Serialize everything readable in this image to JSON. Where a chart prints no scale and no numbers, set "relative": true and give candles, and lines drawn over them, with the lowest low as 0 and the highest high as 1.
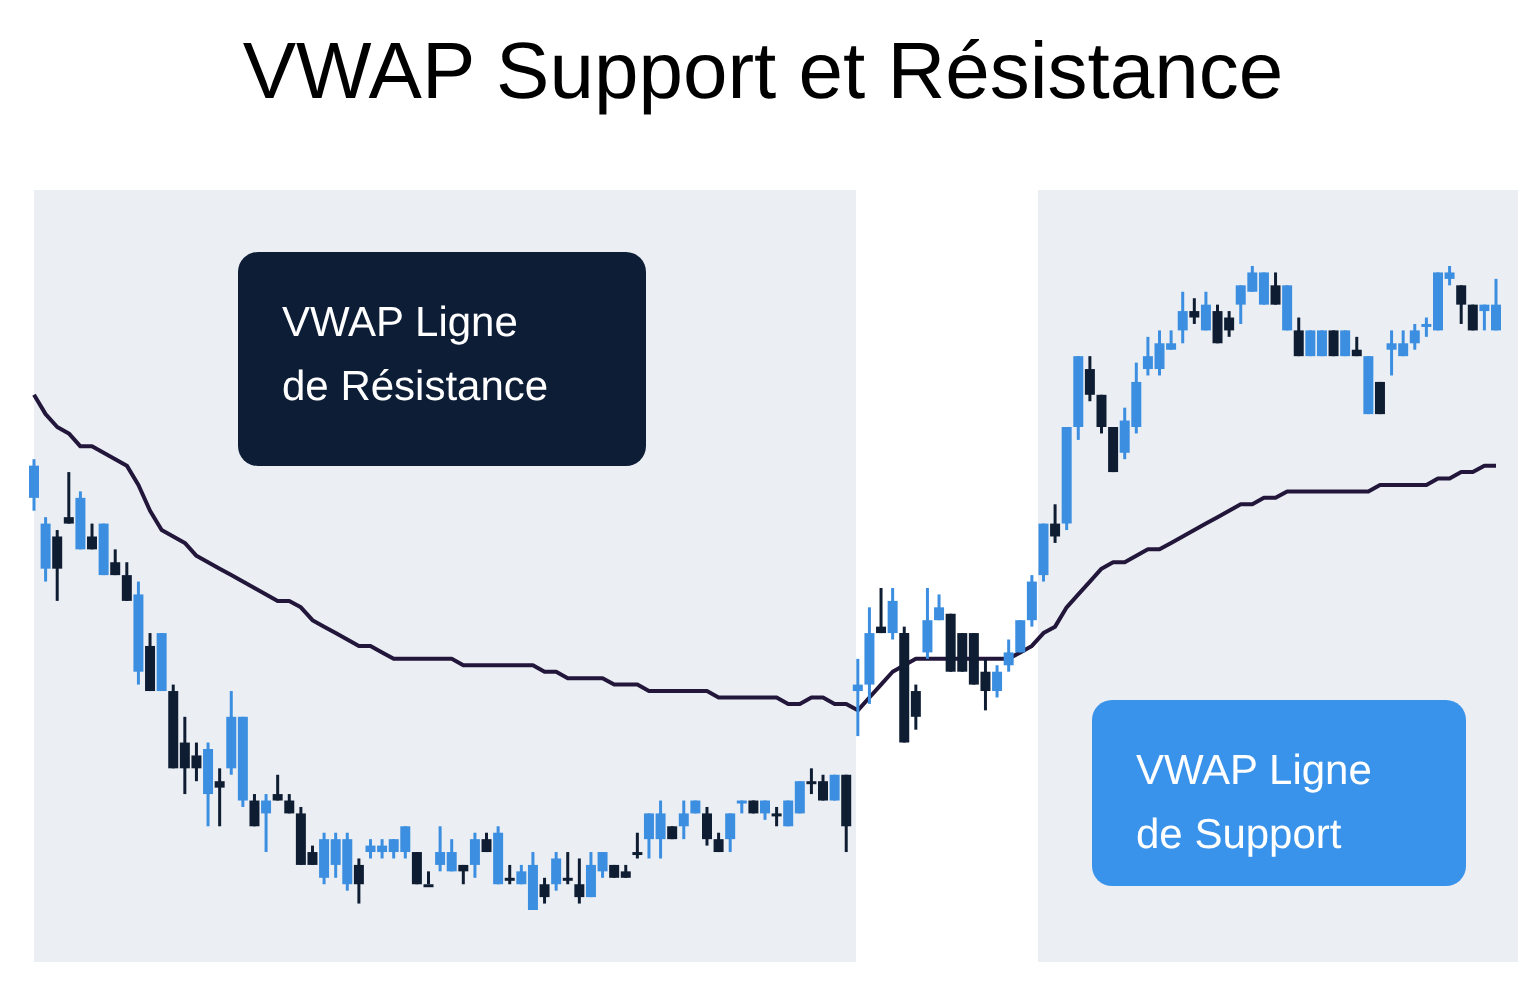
{
  "chart_data": {
    "type": "candlestick",
    "title": "VWAP Support et Résistance",
    "relative": true,
    "legend": false,
    "annotations": [
      "VWAP Ligne de Résistance",
      "VWAP Ligne de Support"
    ],
    "categories": [
      null,
      null,
      null,
      null,
      null,
      null,
      null,
      null,
      null,
      null,
      null,
      null,
      null,
      null,
      null,
      null,
      null,
      null,
      null,
      null,
      null,
      null,
      null,
      null,
      null,
      null,
      null,
      null,
      null,
      null,
      null,
      null,
      null,
      null,
      null,
      null,
      null,
      null,
      null,
      null,
      null,
      null,
      null,
      null,
      null,
      null,
      null,
      null,
      null,
      null,
      null,
      null,
      null,
      null,
      null,
      null,
      null,
      null,
      null,
      null,
      null,
      null,
      null,
      null,
      null,
      null,
      null,
      null,
      null,
      null,
      null,
      null,
      null,
      null,
      null,
      null,
      null,
      null,
      null,
      null,
      null,
      null,
      null,
      null,
      null,
      null,
      null,
      null,
      null,
      null,
      null,
      null,
      null,
      null,
      null,
      null,
      null,
      null,
      null,
      null,
      null,
      null,
      null,
      null,
      null,
      null,
      null,
      null,
      null,
      null,
      null,
      null,
      null,
      null,
      null,
      null,
      null,
      null,
      null,
      null,
      null,
      null,
      null,
      null,
      null,
      null,
      null
    ],
    "ohlc": [
      [
        0.64,
        0.7,
        0.62,
        0.69
      ],
      [
        0.53,
        0.61,
        0.51,
        0.6
      ],
      [
        0.58,
        0.59,
        0.48,
        0.53
      ],
      [
        0.61,
        0.68,
        0.6,
        0.6
      ],
      [
        0.56,
        0.65,
        0.56,
        0.64
      ],
      [
        0.58,
        0.6,
        0.56,
        0.56
      ],
      [
        0.52,
        0.6,
        0.52,
        0.6
      ],
      [
        0.54,
        0.56,
        0.52,
        0.52
      ],
      [
        0.52,
        0.54,
        0.48,
        0.48
      ],
      [
        0.37,
        0.51,
        0.35,
        0.49
      ],
      [
        0.41,
        0.43,
        0.34,
        0.34
      ],
      [
        0.34,
        0.43,
        0.34,
        0.43
      ],
      [
        0.34,
        0.35,
        0.22,
        0.22
      ],
      [
        0.26,
        0.3,
        0.18,
        0.22
      ],
      [
        0.24,
        0.26,
        0.2,
        0.22
      ],
      [
        0.18,
        0.26,
        0.13,
        0.25
      ],
      [
        0.2,
        0.22,
        0.13,
        0.19
      ],
      [
        0.22,
        0.34,
        0.21,
        0.3
      ],
      [
        0.17,
        0.3,
        0.16,
        0.3
      ],
      [
        0.17,
        0.18,
        0.13,
        0.13
      ],
      [
        0.15,
        0.18,
        0.09,
        0.17
      ],
      [
        0.18,
        0.21,
        0.17,
        0.17
      ],
      [
        0.17,
        0.18,
        0.15,
        0.15
      ],
      [
        0.15,
        0.16,
        0.07,
        0.07
      ],
      [
        0.09,
        0.1,
        0.07,
        0.07
      ],
      [
        0.05,
        0.12,
        0.04,
        0.11
      ],
      [
        0.07,
        0.12,
        0.05,
        0.11
      ],
      [
        0.04,
        0.12,
        0.03,
        0.11
      ],
      [
        0.07,
        0.08,
        0.01,
        0.04
      ],
      [
        0.09,
        0.11,
        0.08,
        0.1
      ],
      [
        0.09,
        0.11,
        0.08,
        0.1
      ],
      [
        0.09,
        0.11,
        0.08,
        0.11
      ],
      [
        0.09,
        0.13,
        0.08,
        0.13
      ],
      [
        0.09,
        0.09,
        0.04,
        0.04
      ],
      [
        0.04,
        0.06,
        0.04,
        0.04
      ],
      [
        0.07,
        0.13,
        0.06,
        0.09
      ],
      [
        0.06,
        0.11,
        0.06,
        0.09
      ],
      [
        0.07,
        0.07,
        0.04,
        0.06
      ],
      [
        0.07,
        0.12,
        0.05,
        0.11
      ],
      [
        0.11,
        0.12,
        0.09,
        0.09
      ],
      [
        0.04,
        0.13,
        0.04,
        0.12
      ],
      [
        0.05,
        0.07,
        0.04,
        0.05
      ],
      [
        0.04,
        0.07,
        0.04,
        0.06
      ],
      [
        0.0,
        0.09,
        0.0,
        0.07
      ],
      [
        0.04,
        0.05,
        0.01,
        0.02
      ],
      [
        0.04,
        0.09,
        0.03,
        0.08
      ],
      [
        0.05,
        0.09,
        0.04,
        0.05
      ],
      [
        0.04,
        0.08,
        0.01,
        0.02
      ],
      [
        0.02,
        0.09,
        0.02,
        0.07
      ],
      [
        0.06,
        0.09,
        0.05,
        0.09
      ],
      [
        0.07,
        0.07,
        0.05,
        0.05
      ],
      [
        0.06,
        0.07,
        0.05,
        0.05
      ],
      [
        0.09,
        0.12,
        0.08,
        0.09
      ],
      [
        0.11,
        0.15,
        0.08,
        0.15
      ],
      [
        0.11,
        0.17,
        0.08,
        0.15
      ],
      [
        0.13,
        0.13,
        0.11,
        0.11
      ],
      [
        0.13,
        0.17,
        0.11,
        0.15
      ],
      [
        0.15,
        0.17,
        0.15,
        0.17
      ],
      [
        0.15,
        0.16,
        0.1,
        0.11
      ],
      [
        0.11,
        0.12,
        0.09,
        0.09
      ],
      [
        0.11,
        0.15,
        0.09,
        0.15
      ],
      [
        0.17,
        0.17,
        0.15,
        0.17
      ],
      [
        0.17,
        0.17,
        0.15,
        0.15
      ],
      [
        0.15,
        0.17,
        0.14,
        0.17
      ],
      [
        0.15,
        0.16,
        0.13,
        0.15
      ],
      [
        0.13,
        0.17,
        0.13,
        0.17
      ],
      [
        0.15,
        0.2,
        0.15,
        0.2
      ],
      [
        0.2,
        0.22,
        0.18,
        0.2
      ],
      [
        0.2,
        0.21,
        0.17,
        0.17
      ],
      [
        0.17,
        0.21,
        0.17,
        0.21
      ],
      [
        0.21,
        0.21,
        0.09,
        0.13
      ],
      [
        0.34,
        0.39,
        0.27,
        0.35
      ],
      [
        0.35,
        0.47,
        0.32,
        0.43
      ],
      [
        0.44,
        0.5,
        0.43,
        0.43
      ],
      [
        0.43,
        0.5,
        0.42,
        0.48
      ],
      [
        0.43,
        0.44,
        0.26,
        0.26
      ],
      [
        0.34,
        0.35,
        0.28,
        0.3
      ],
      [
        0.4,
        0.5,
        0.39,
        0.45
      ],
      [
        0.45,
        0.49,
        0.45,
        0.47
      ],
      [
        0.46,
        0.46,
        0.37,
        0.37
      ],
      [
        0.43,
        0.43,
        0.37,
        0.37
      ],
      [
        0.43,
        0.43,
        0.35,
        0.35
      ],
      [
        0.37,
        0.39,
        0.31,
        0.34
      ],
      [
        0.34,
        0.38,
        0.33,
        0.37
      ],
      [
        0.38,
        0.42,
        0.37,
        0.4
      ],
      [
        0.4,
        0.45,
        0.4,
        0.45
      ],
      [
        0.45,
        0.52,
        0.44,
        0.51
      ],
      [
        0.52,
        0.6,
        0.51,
        0.6
      ],
      [
        0.6,
        0.63,
        0.57,
        0.58
      ],
      [
        0.6,
        0.75,
        0.59,
        0.75
      ],
      [
        0.75,
        0.86,
        0.73,
        0.86
      ],
      [
        0.84,
        0.86,
        0.79,
        0.8
      ],
      [
        0.8,
        0.8,
        0.74,
        0.75
      ],
      [
        0.75,
        0.75,
        0.68,
        0.68
      ],
      [
        0.71,
        0.78,
        0.7,
        0.76
      ],
      [
        0.75,
        0.85,
        0.74,
        0.82
      ],
      [
        0.84,
        0.89,
        0.83,
        0.86
      ],
      [
        0.84,
        0.9,
        0.83,
        0.88
      ],
      [
        0.87,
        0.9,
        0.87,
        0.88
      ],
      [
        0.9,
        0.96,
        0.88,
        0.93
      ],
      [
        0.93,
        0.95,
        0.91,
        0.92
      ],
      [
        0.9,
        0.96,
        0.9,
        0.94
      ],
      [
        0.93,
        0.94,
        0.88,
        0.88
      ],
      [
        0.92,
        0.93,
        0.89,
        0.9
      ],
      [
        0.94,
        0.97,
        0.91,
        0.97
      ],
      [
        0.96,
        1.0,
        0.96,
        0.99
      ],
      [
        0.94,
        0.99,
        0.94,
        0.99
      ],
      [
        0.97,
        0.99,
        0.94,
        0.94
      ],
      [
        0.9,
        0.97,
        0.9,
        0.97
      ],
      [
        0.9,
        0.92,
        0.86,
        0.86
      ],
      [
        0.86,
        0.9,
        0.86,
        0.9
      ],
      [
        0.86,
        0.9,
        0.86,
        0.9
      ],
      [
        0.9,
        0.9,
        0.86,
        0.86
      ],
      [
        0.86,
        0.9,
        0.86,
        0.9
      ],
      [
        0.87,
        0.89,
        0.86,
        0.86
      ],
      [
        0.77,
        0.86,
        0.77,
        0.86
      ],
      [
        0.82,
        0.82,
        0.77,
        0.77
      ],
      [
        0.87,
        0.9,
        0.83,
        0.88
      ],
      [
        0.86,
        0.9,
        0.86,
        0.88
      ],
      [
        0.88,
        0.91,
        0.87,
        0.9
      ],
      [
        0.91,
        0.92,
        0.89,
        0.91
      ],
      [
        0.9,
        0.99,
        0.9,
        0.99
      ],
      [
        0.98,
        1.0,
        0.97,
        0.99
      ],
      [
        0.97,
        0.97,
        0.91,
        0.94
      ],
      [
        0.94,
        0.94,
        0.9,
        0.9
      ],
      [
        0.93,
        0.94,
        0.9,
        0.94
      ],
      [
        0.9,
        0.98,
        0.9,
        0.94
      ]
    ],
    "colors": [
      "#3b8ee0",
      "#3b8ee0",
      "#0f1d33",
      "#0f1d33",
      "#3b8ee0",
      "#0f1d33",
      "#3b8ee0",
      "#0f1d33",
      "#0f1d33",
      "#3b8ee0",
      "#0f1d33",
      "#3b8ee0",
      "#0f1d33",
      "#0f1d33",
      "#0f1d33",
      "#3b8ee0",
      "#0f1d33",
      "#3b8ee0",
      "#3b8ee0",
      "#0f1d33",
      "#3b8ee0",
      "#0f1d33",
      "#0f1d33",
      "#0f1d33",
      "#0f1d33",
      "#3b8ee0",
      "#3b8ee0",
      "#3b8ee0",
      "#0f1d33",
      "#3b8ee0",
      "#3b8ee0",
      "#3b8ee0",
      "#3b8ee0",
      "#0f1d33",
      "#0f1d33",
      "#3b8ee0",
      "#3b8ee0",
      "#0f1d33",
      "#3b8ee0",
      "#0f1d33",
      "#3b8ee0",
      "#0f1d33",
      "#3b8ee0",
      "#3b8ee0",
      "#0f1d33",
      "#3b8ee0",
      "#0f1d33",
      "#0f1d33",
      "#3b8ee0",
      "#3b8ee0",
      "#0f1d33",
      "#0f1d33",
      "#0f1d33",
      "#3b8ee0",
      "#3b8ee0",
      "#0f1d33",
      "#3b8ee0",
      "#3b8ee0",
      "#0f1d33",
      "#0f1d33",
      "#3b8ee0",
      "#3b8ee0",
      "#0f1d33",
      "#3b8ee0",
      "#0f1d33",
      "#3b8ee0",
      "#3b8ee0",
      "#0f1d33",
      "#0f1d33",
      "#3b8ee0",
      "#0f1d33",
      "#3b8ee0",
      "#3b8ee0",
      "#0f1d33",
      "#3b8ee0",
      "#0f1d33",
      "#0f1d33",
      "#3b8ee0",
      "#3b8ee0",
      "#0f1d33",
      "#0f1d33",
      "#0f1d33",
      "#0f1d33",
      "#3b8ee0",
      "#3b8ee0",
      "#3b8ee0",
      "#3b8ee0",
      "#3b8ee0",
      "#0f1d33",
      "#3b8ee0",
      "#3b8ee0",
      "#0f1d33",
      "#0f1d33",
      "#0f1d33",
      "#3b8ee0",
      "#3b8ee0",
      "#3b8ee0",
      "#3b8ee0",
      "#3b8ee0",
      "#3b8ee0",
      "#0f1d33",
      "#3b8ee0",
      "#0f1d33",
      "#0f1d33",
      "#3b8ee0",
      "#3b8ee0",
      "#3b8ee0",
      "#0f1d33",
      "#3b8ee0",
      "#0f1d33",
      "#3b8ee0",
      "#3b8ee0",
      "#0f1d33",
      "#3b8ee0",
      "#0f1d33",
      "#3b8ee0",
      "#0f1d33",
      "#3b8ee0",
      "#3b8ee0",
      "#3b8ee0",
      "#3b8ee0",
      "#3b8ee0",
      "#3b8ee0",
      "#0f1d33",
      "#0f1d33",
      "#3b8ee0",
      "#3b8ee0"
    ],
    "series": [
      {
        "type": "line",
        "color": "#22163a",
        "values": [
          0.8,
          0.77,
          0.75,
          0.74,
          0.72,
          0.72,
          0.71,
          0.7,
          0.69,
          0.66,
          0.62,
          0.59,
          0.58,
          0.57,
          0.55,
          0.54,
          0.53,
          0.52,
          0.51,
          0.5,
          0.49,
          0.48,
          0.48,
          0.47,
          0.45,
          0.44,
          0.43,
          0.42,
          0.41,
          0.41,
          0.4,
          0.39,
          0.39,
          0.39,
          0.39,
          0.39,
          0.39,
          0.38,
          0.38,
          0.38,
          0.38,
          0.38,
          0.38,
          0.38,
          0.37,
          0.37,
          0.36,
          0.36,
          0.36,
          0.36,
          0.35,
          0.35,
          0.35,
          0.34,
          0.34,
          0.34,
          0.34,
          0.34,
          0.34,
          0.33,
          0.33,
          0.33,
          0.33,
          0.33,
          0.33,
          0.32,
          0.32,
          0.33,
          0.33,
          0.32,
          0.32,
          0.31,
          0.33,
          0.35,
          0.37,
          0.38,
          0.39,
          0.39,
          0.39,
          0.39,
          0.39,
          0.39,
          0.39,
          0.39,
          0.39,
          0.4,
          0.41,
          0.43,
          0.44,
          0.47,
          0.49,
          0.51,
          0.53,
          0.54,
          0.54,
          0.55,
          0.56,
          0.56,
          0.57,
          0.58,
          0.59,
          0.6,
          0.61,
          0.62,
          0.63,
          0.63,
          0.64,
          0.64,
          0.65,
          0.65,
          0.65,
          0.65,
          0.65,
          0.65,
          0.65,
          0.65,
          0.66,
          0.66,
          0.66,
          0.66,
          0.66,
          0.67,
          0.67,
          0.68,
          0.68,
          0.69,
          0.69
        ]
      }
    ]
  }
}
